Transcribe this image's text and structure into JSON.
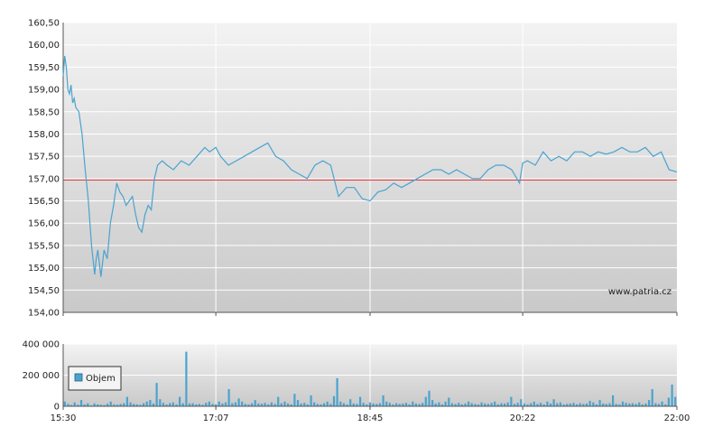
{
  "chart_data": [
    {
      "type": "line",
      "title": "",
      "xlabel": "",
      "ylabel": "",
      "ylim": [
        154.0,
        160.5
      ],
      "y_ticks": [
        "154,00",
        "154,50",
        "155,00",
        "155,50",
        "156,00",
        "156,50",
        "157,00",
        "157,50",
        "158,00",
        "158,50",
        "159,00",
        "159,50",
        "160,00",
        "160,50"
      ],
      "x_ticks": [
        "15:30",
        "17:07",
        "18:45",
        "20:22",
        "22:00"
      ],
      "reference_line": {
        "value": 156.97,
        "color": "#e03030"
      },
      "watermark": "www.patria.cz",
      "grid": true,
      "line_color": "#4aa3cf",
      "series": [
        {
          "x": [
            "15:30",
            "15:31",
            "15:32",
            "15:33",
            "15:34",
            "15:35",
            "15:36",
            "15:37",
            "15:38",
            "15:40",
            "15:42",
            "15:44",
            "15:46",
            "15:48",
            "15:50",
            "15:51",
            "15:52",
            "15:54",
            "15:56",
            "15:58",
            "16:00",
            "16:02",
            "16:04",
            "16:06",
            "16:08",
            "16:10",
            "16:12",
            "16:14",
            "16:16",
            "16:18",
            "16:20",
            "16:22",
            "16:24",
            "16:26",
            "16:28",
            "16:30",
            "16:33",
            "16:36",
            "16:40",
            "16:45",
            "16:50",
            "16:55",
            "17:00",
            "17:03",
            "17:07",
            "17:10",
            "17:15",
            "17:20",
            "17:25",
            "17:30",
            "17:35",
            "17:40",
            "17:45",
            "17:50",
            "17:55",
            "18:00",
            "18:05",
            "18:10",
            "18:15",
            "18:20",
            "18:25",
            "18:30",
            "18:35",
            "18:40",
            "18:45",
            "18:50",
            "18:55",
            "19:00",
            "19:05",
            "19:10",
            "19:15",
            "19:20",
            "19:25",
            "19:30",
            "19:35",
            "19:40",
            "19:45",
            "19:50",
            "19:55",
            "20:00",
            "20:05",
            "20:10",
            "20:15",
            "20:20",
            "20:22",
            "20:25",
            "20:30",
            "20:35",
            "20:40",
            "20:45",
            "20:50",
            "20:55",
            "21:00",
            "21:05",
            "21:10",
            "21:15",
            "21:20",
            "21:25",
            "21:30",
            "21:35",
            "21:40",
            "21:45",
            "21:50",
            "21:55",
            "22:00"
          ],
          "values": [
            159.3,
            159.75,
            159.5,
            159.0,
            158.9,
            159.1,
            158.7,
            158.8,
            158.6,
            158.5,
            158.0,
            157.2,
            156.5,
            155.5,
            154.85,
            155.2,
            155.4,
            154.8,
            155.4,
            155.2,
            156.0,
            156.4,
            156.9,
            156.7,
            156.6,
            156.4,
            156.5,
            156.6,
            156.2,
            155.9,
            155.8,
            156.2,
            156.4,
            156.3,
            157.0,
            157.3,
            157.4,
            157.3,
            157.2,
            157.4,
            157.3,
            157.5,
            157.7,
            157.6,
            157.7,
            157.5,
            157.3,
            157.4,
            157.5,
            157.6,
            157.7,
            157.8,
            157.5,
            157.4,
            157.2,
            157.1,
            157.0,
            157.3,
            157.4,
            157.3,
            156.6,
            156.8,
            156.8,
            156.55,
            156.5,
            156.7,
            156.75,
            156.9,
            156.8,
            156.9,
            157.0,
            157.1,
            157.2,
            157.2,
            157.1,
            157.2,
            157.1,
            157.0,
            157.0,
            157.2,
            157.3,
            157.3,
            157.2,
            156.9,
            157.35,
            157.4,
            157.3,
            157.6,
            157.4,
            157.5,
            157.4,
            157.6,
            157.6,
            157.5,
            157.6,
            157.55,
            157.6,
            157.7,
            157.6,
            157.6,
            157.7,
            157.5,
            157.6,
            157.2,
            157.15
          ]
        }
      ]
    },
    {
      "type": "bar",
      "title": "",
      "ylim": [
        0,
        400000
      ],
      "y_ticks": [
        "0",
        "200 000",
        "400 000"
      ],
      "x_ticks": [
        "15:30",
        "17:07",
        "18:45",
        "20:22",
        "22:00"
      ],
      "legend": {
        "label": "Objem",
        "position": "left"
      },
      "bar_color": "#4aa3cf",
      "series": [
        {
          "name": "Objem",
          "values": [
            30000,
            15000,
            8000,
            25000,
            10000,
            40000,
            12000,
            20000,
            5000,
            18000,
            12000,
            10000,
            8000,
            16000,
            30000,
            12000,
            10000,
            15000,
            20000,
            60000,
            25000,
            15000,
            12000,
            10000,
            20000,
            30000,
            40000,
            18000,
            150000,
            45000,
            22000,
            12000,
            20000,
            25000,
            12000,
            60000,
            20000,
            350000,
            18000,
            20000,
            12000,
            15000,
            10000,
            22000,
            30000,
            15000,
            12000,
            30000,
            18000,
            25000,
            110000,
            20000,
            25000,
            50000,
            30000,
            15000,
            12000,
            20000,
            40000,
            18000,
            16000,
            22000,
            12000,
            25000,
            15000,
            60000,
            20000,
            30000,
            18000,
            12000,
            80000,
            40000,
            18000,
            22000,
            12000,
            70000,
            25000,
            15000,
            12000,
            20000,
            30000,
            15000,
            65000,
            180000,
            30000,
            20000,
            12000,
            45000,
            18000,
            15000,
            60000,
            22000,
            12000,
            25000,
            18000,
            15000,
            20000,
            70000,
            30000,
            22000,
            12000,
            20000,
            15000,
            18000,
            22000,
            12000,
            30000,
            18000,
            15000,
            22000,
            60000,
            100000,
            40000,
            18000,
            25000,
            12000,
            30000,
            55000,
            20000,
            15000,
            22000,
            12000,
            18000,
            30000,
            20000,
            15000,
            12000,
            25000,
            18000,
            15000,
            22000,
            30000,
            12000,
            20000,
            18000,
            25000,
            60000,
            15000,
            22000,
            45000,
            18000,
            12000,
            20000,
            30000,
            15000,
            22000,
            12000,
            30000,
            18000,
            45000,
            20000,
            25000,
            12000,
            15000,
            18000,
            22000,
            12000,
            20000,
            15000,
            18000,
            35000,
            25000,
            12000,
            40000,
            18000,
            15000,
            20000,
            70000,
            15000,
            12000,
            30000,
            22000,
            18000,
            20000,
            15000,
            25000,
            12000,
            18000,
            40000,
            110000,
            20000,
            15000,
            30000,
            12000,
            55000,
            140000,
            60000
          ]
        }
      ]
    }
  ]
}
